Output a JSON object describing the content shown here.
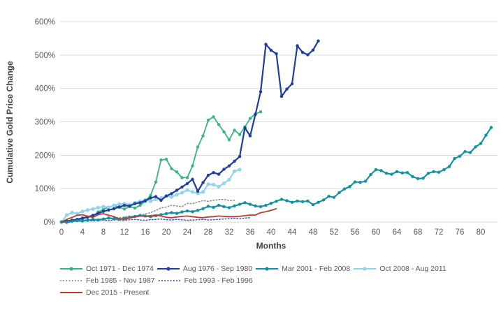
{
  "chart_data": {
    "type": "line",
    "title": "",
    "xlabel": "Months",
    "ylabel": "Cumulative Gold Price Change",
    "x_ticks": [
      0,
      4,
      8,
      12,
      16,
      20,
      24,
      28,
      32,
      36,
      40,
      44,
      48,
      52,
      56,
      60,
      64,
      68,
      72,
      76,
      80
    ],
    "y_ticks_pct": [
      0,
      100,
      200,
      300,
      400,
      500,
      600
    ],
    "y_tick_labels": [
      "0%",
      "100%",
      "200%",
      "300%",
      "400%",
      "500%",
      "600%"
    ],
    "xlim": [
      0,
      83
    ],
    "ylim": [
      0,
      600
    ],
    "grid": true,
    "legend_position": "bottom-left",
    "axis_text_color": "#595959",
    "axis_title_color": "#3f3f3f",
    "gridline_color": "#d9d9d9",
    "draw_order": [
      0,
      4,
      5,
      3,
      1,
      2,
      6
    ],
    "series": [
      {
        "name": "Oct 1971 - Dec 1974",
        "color": "#38b586",
        "style": "line-markers",
        "width": 1.8,
        "marker_r": 2.2,
        "legend_row": 0,
        "values": [
          0,
          3,
          6,
          5,
          9,
          14,
          18,
          30,
          38,
          44,
          50,
          44,
          39,
          46,
          42,
          50,
          62,
          80,
          120,
          186,
          188,
          160,
          150,
          133,
          133,
          168,
          225,
          258,
          305,
          315,
          292,
          270,
          246,
          275,
          262,
          285,
          310,
          324,
          330
        ]
      },
      {
        "name": "Aug 1976 - Sep 1980",
        "color": "#1f3d9e",
        "style": "line-markers",
        "width": 2.2,
        "marker_r": 2.2,
        "legend_row": 0,
        "values": [
          0,
          2,
          5,
          8,
          12,
          15,
          20,
          26,
          32,
          36,
          40,
          45,
          50,
          48,
          55,
          58,
          64,
          72,
          76,
          65,
          78,
          85,
          95,
          105,
          115,
          128,
          92,
          118,
          140,
          148,
          143,
          158,
          168,
          182,
          196,
          282,
          258,
          322,
          390,
          532,
          514,
          504,
          376,
          398,
          414,
          528,
          508,
          501,
          515,
          542
        ]
      },
      {
        "name": "Mar 2001 - Feb 2008",
        "color": "#1191a5",
        "style": "line-markers",
        "width": 2.1,
        "marker_r": 2.2,
        "legend_row": 0,
        "values": [
          0,
          -1,
          2,
          4,
          3,
          5,
          8,
          6,
          9,
          12,
          10,
          8,
          11,
          14,
          17,
          20,
          18,
          16,
          19,
          22,
          25,
          28,
          26,
          30,
          33,
          31,
          35,
          40,
          47,
          44,
          50,
          46,
          43,
          48,
          53,
          58,
          53,
          48,
          46,
          50,
          56,
          62,
          68,
          64,
          59,
          63,
          61,
          63,
          52,
          59,
          66,
          77,
          74,
          88,
          99,
          106,
          120,
          119,
          122,
          142,
          157,
          154,
          146,
          143,
          151,
          147,
          148,
          136,
          130,
          131,
          146,
          151,
          149,
          157,
          166,
          190,
          197,
          211,
          208,
          225,
          235,
          260,
          283
        ]
      },
      {
        "name": "Oct 2008 - Aug 2011",
        "color": "#92d4ee",
        "style": "line-markers",
        "width": 2.2,
        "marker_r": 2.6,
        "legend_row": 0,
        "values": [
          0,
          21,
          28,
          25,
          32,
          36,
          39,
          43,
          46,
          44,
          50,
          53,
          55,
          52,
          58,
          62,
          66,
          62,
          68,
          72,
          78,
          75,
          82,
          88,
          96,
          90,
          86,
          90,
          113,
          112,
          106,
          116,
          127,
          152,
          157
        ]
      },
      {
        "name": "Feb 1985 - Nov 1987",
        "color": "#8f8f8f",
        "style": "dotted",
        "width": 1.5,
        "marker_r": 0,
        "legend_row": 1,
        "values": [
          0,
          2,
          4,
          3,
          5,
          7,
          6,
          8,
          10,
          9,
          11,
          13,
          15,
          18,
          16,
          20,
          24,
          28,
          35,
          42,
          45,
          50,
          48,
          46,
          56,
          55,
          60,
          64,
          62,
          65,
          67,
          68,
          64,
          65
        ]
      },
      {
        "name": "Feb 1993 - Feb 1996",
        "color": "#4053c2",
        "style": "dotted",
        "width": 1.5,
        "marker_r": 0,
        "legend_row": 1,
        "values": [
          0,
          1,
          3,
          2,
          4,
          5,
          3,
          5,
          6,
          4,
          6,
          7,
          5,
          7,
          8,
          6,
          5,
          7,
          8,
          9,
          7,
          6,
          8,
          7,
          5,
          6,
          7,
          8,
          6,
          7,
          8,
          9,
          10,
          11,
          10,
          12,
          13
        ]
      },
      {
        "name": "Dec 2015 - Present",
        "color": "#c0392b",
        "style": "line",
        "width": 1.8,
        "marker_r": 0,
        "legend_row": 2,
        "values": [
          0,
          8,
          14,
          20,
          22,
          17,
          14,
          22,
          25,
          20,
          16,
          10,
          8,
          12,
          15,
          18,
          17,
          19,
          21,
          18,
          14,
          13,
          15,
          17,
          18,
          16,
          14,
          13,
          15,
          16,
          18,
          17,
          16,
          16,
          17,
          19,
          21,
          21,
          28,
          31,
          35,
          40
        ]
      }
    ]
  }
}
